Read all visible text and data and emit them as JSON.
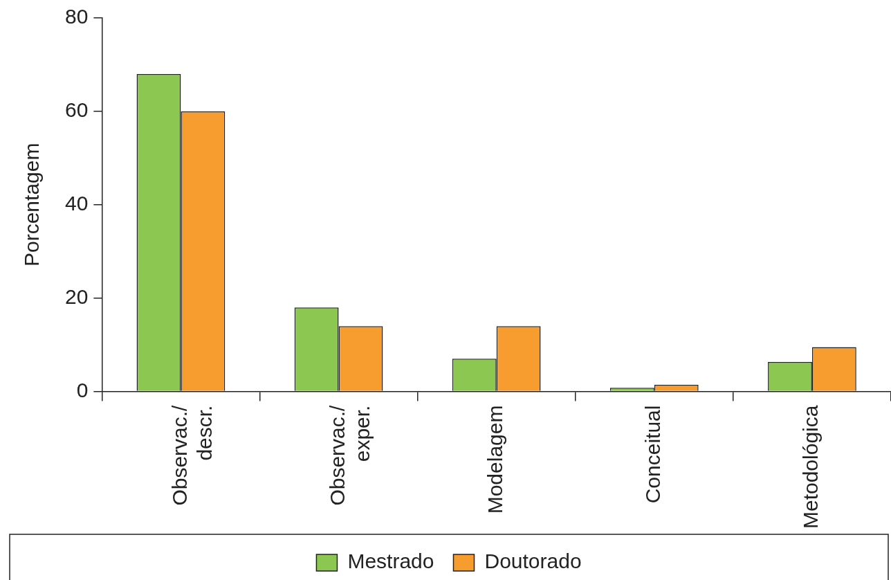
{
  "chart_data": {
    "type": "bar",
    "ylabel": "Porcentagem",
    "categories": [
      "Observac./ descr.",
      "Observac./ exper.",
      "Modelagem",
      "Conceitual",
      "Metodológica"
    ],
    "series": [
      {
        "name": "Mestrado",
        "color": "#8cc751",
        "values": [
          68,
          18,
          7,
          0.8,
          6.3
        ]
      },
      {
        "name": "Doutorado",
        "color": "#f79d30",
        "values": [
          60,
          14,
          14,
          1.4,
          9.5
        ]
      }
    ],
    "ylim": [
      0,
      80
    ],
    "yticks": [
      0,
      20,
      40,
      60,
      80
    ],
    "grid": false,
    "legend": "bottom"
  }
}
